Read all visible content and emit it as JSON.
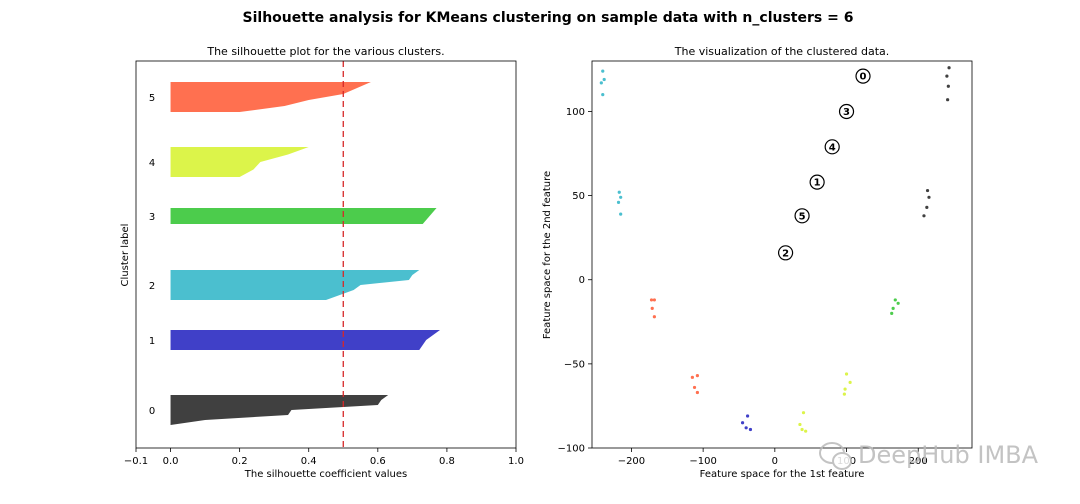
{
  "figure": {
    "suptitle": "Silhouette analysis for KMeans clustering on sample data with n_clusters = 6",
    "watermark": "DeepHub IMBA"
  },
  "chart_data": [
    {
      "type": "area",
      "title": "The silhouette plot for the various clusters.",
      "xlabel": "The silhouette coefficient values",
      "ylabel": "Cluster label",
      "xlim": [
        -0.1,
        1.0
      ],
      "xticks": [
        "−0.1",
        "0.0",
        "0.2",
        "0.4",
        "0.6",
        "0.8",
        "1.0"
      ],
      "average_silhouette": 0.5,
      "average_line_color": "#d62728",
      "clusters": [
        {
          "label": "0",
          "color": "#404040",
          "profile": [
            0.63,
            0.61,
            0.6,
            0.35,
            0.34,
            0.1,
            0.0
          ]
        },
        {
          "label": "1",
          "color": "#4040c8",
          "profile": [
            0.78,
            0.74,
            0.72
          ]
        },
        {
          "label": "2",
          "color": "#4bbfcf",
          "profile": [
            0.72,
            0.7,
            0.69,
            0.55,
            0.53,
            0.49,
            0.45
          ]
        },
        {
          "label": "3",
          "color": "#4ccc4c",
          "profile": [
            0.77,
            0.75,
            0.73
          ]
        },
        {
          "label": "4",
          "color": "#dcf44a",
          "profile": [
            0.4,
            0.34,
            0.26,
            0.24,
            0.2
          ]
        },
        {
          "label": "5",
          "color": "#ff7050",
          "profile": [
            0.58,
            0.54,
            0.5,
            0.4,
            0.33,
            0.2
          ]
        }
      ]
    },
    {
      "type": "scatter",
      "title": "The visualization of the clustered data.",
      "xlabel": "Feature space for the 1st feature",
      "ylabel": "Feature space for the 2nd feature",
      "xlim": [
        -255,
        275
      ],
      "ylim": [
        -100,
        130
      ],
      "xticks": [
        -200,
        -100,
        0,
        100,
        200
      ],
      "yticks": [
        -100,
        -50,
        0,
        50,
        100
      ],
      "groups": [
        {
          "color": "#4bbfcf",
          "points": [
            [
              -240,
              124
            ],
            [
              -238,
              119
            ],
            [
              -242,
              117
            ],
            [
              -240,
              110
            ],
            [
              -217,
              52
            ],
            [
              -215,
              49
            ],
            [
              -218,
              46
            ],
            [
              -215,
              39
            ]
          ]
        },
        {
          "color": "#404040",
          "points": [
            [
              243,
              126
            ],
            [
              240,
              121
            ],
            [
              242,
              115
            ],
            [
              241,
              107
            ],
            [
              213,
              53
            ],
            [
              215,
              49
            ],
            [
              212,
              43
            ],
            [
              208,
              38
            ]
          ]
        },
        {
          "color": "#ff7050",
          "points": [
            [
              -168,
              -12
            ],
            [
              -172,
              -12
            ],
            [
              -171,
              -17
            ],
            [
              -168,
              -22
            ],
            [
              -115,
              -58
            ],
            [
              -108,
              -57
            ],
            [
              -112,
              -64
            ],
            [
              -108,
              -67
            ]
          ]
        },
        {
          "color": "#4ccc4c",
          "points": [
            [
              168,
              -12
            ],
            [
              172,
              -14
            ],
            [
              165,
              -17
            ],
            [
              163,
              -20
            ]
          ]
        },
        {
          "color": "#dcf44a",
          "points": [
            [
              100,
              -56
            ],
            [
              105,
              -61
            ],
            [
              98,
              -65
            ],
            [
              97,
              -68
            ],
            [
              40,
              -79
            ],
            [
              35,
              -86
            ],
            [
              38,
              -89
            ],
            [
              43,
              -90
            ]
          ]
        },
        {
          "color": "#4040c8",
          "points": [
            [
              -38,
              -81
            ],
            [
              -45,
              -85
            ],
            [
              -40,
              -88
            ],
            [
              -34,
              -89
            ]
          ]
        }
      ],
      "centres": [
        {
          "label": "0",
          "x": 123,
          "y": 121
        },
        {
          "label": "3",
          "x": 100,
          "y": 100
        },
        {
          "label": "4",
          "x": 80,
          "y": 79
        },
        {
          "label": "1",
          "x": 59,
          "y": 58
        },
        {
          "label": "5",
          "x": 38,
          "y": 38
        },
        {
          "label": "2",
          "x": 15,
          "y": 16
        }
      ]
    }
  ]
}
